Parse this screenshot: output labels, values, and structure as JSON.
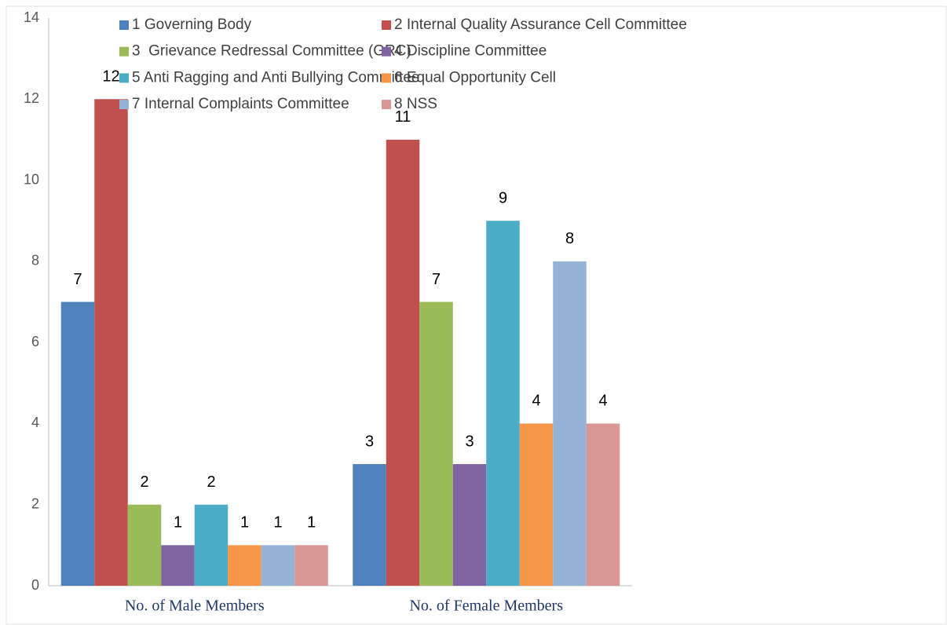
{
  "chart_data": {
    "type": "bar",
    "categories": [
      "No. of Male Members",
      "No. of Female Members"
    ],
    "series": [
      {
        "name": "1 Governing Body",
        "color": "#4f81bd",
        "values": [
          7,
          3
        ]
      },
      {
        "name": "2 Internal Quality Assurance Cell Committee",
        "color": "#c0504d",
        "values": [
          12,
          11
        ]
      },
      {
        "name": "3  Grievance Redressal Committee (GRC)",
        "color": "#9bbb59",
        "values": [
          2,
          7
        ]
      },
      {
        "name": "4 Discipline Committee",
        "color": "#8064a2",
        "values": [
          1,
          3
        ]
      },
      {
        "name": "5 Anti Ragging and Anti Bullying Committee",
        "color": "#4bacc6",
        "values": [
          2,
          9
        ]
      },
      {
        "name": "6 Equal Opportunity Cell",
        "color": "#f79646",
        "values": [
          1,
          4
        ]
      },
      {
        "name": "7 Internal Complaints Committee",
        "color": "#95b3d7",
        "values": [
          1,
          8
        ]
      },
      {
        "name": "8 NSS",
        "color": "#d99694",
        "values": [
          1,
          4
        ]
      }
    ],
    "ylim": [
      0,
      14
    ],
    "yticks": [
      0,
      2,
      4,
      6,
      8,
      10,
      12,
      14
    ],
    "grid": false,
    "legend": "top"
  }
}
